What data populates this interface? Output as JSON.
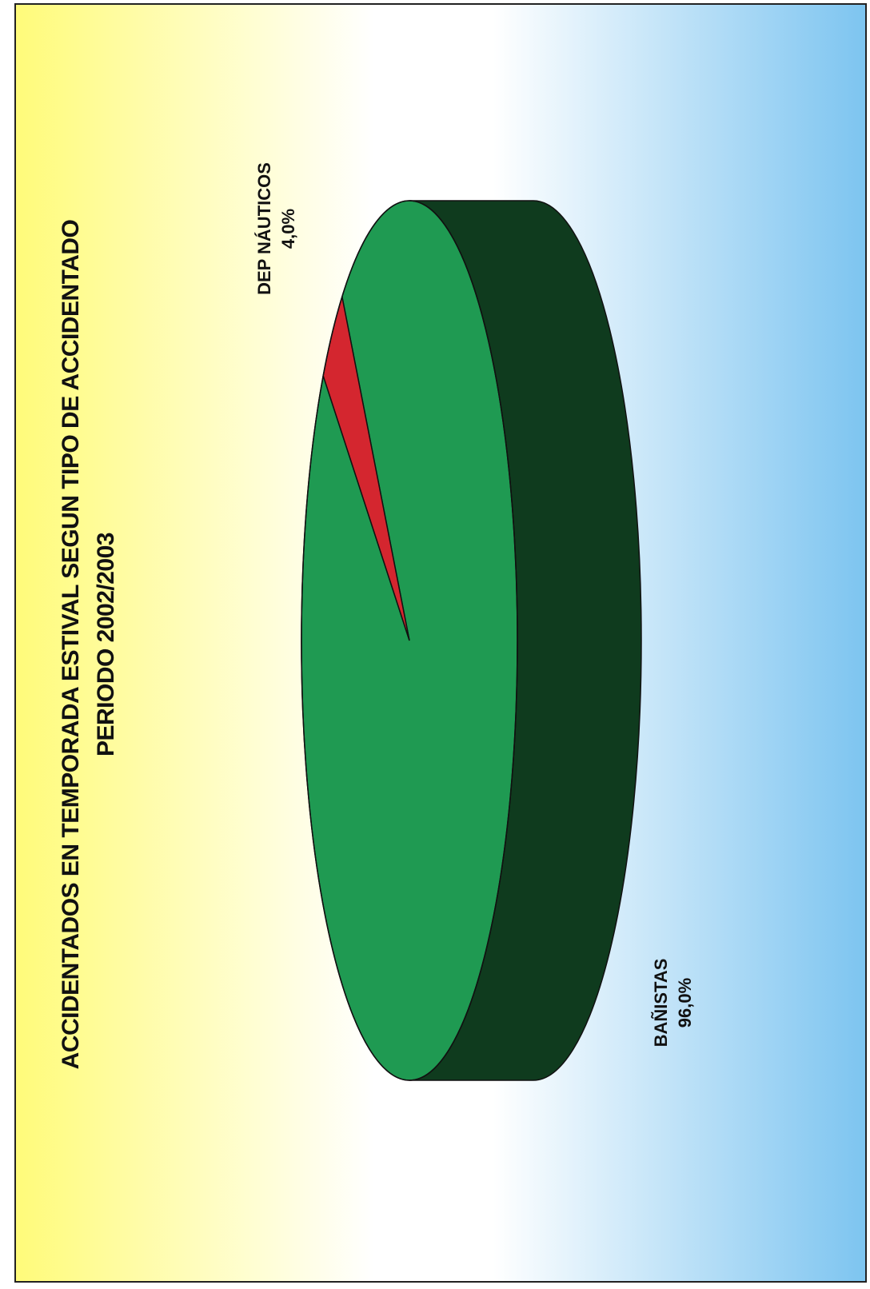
{
  "colors": {
    "bg_left": "#fffb7a",
    "bg_mid": "#ffffff",
    "bg_right": "#7cc4f0",
    "slice_banistas": "#1f9a52",
    "slice_nauticos": "#d4262f",
    "side_dark": "#0f3b1e",
    "outline": "#111111"
  },
  "chart_data": {
    "type": "pie",
    "title": "ACCIDENTADOS EN TEMPORADA ESTIVAL SEGUN TIPO DE ACCIDENTADO",
    "subtitle": "PERIODO 2002/2003",
    "categories": [
      "BAÑISTAS",
      "DEP NÁUTICOS"
    ],
    "values": [
      96.0,
      4.0
    ],
    "value_labels": [
      "96,0%",
      "4,0%"
    ],
    "style": "3d"
  }
}
